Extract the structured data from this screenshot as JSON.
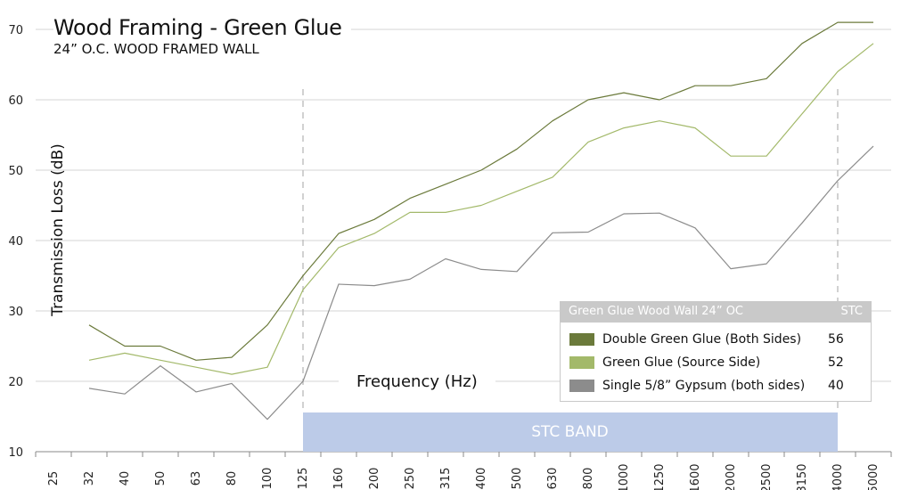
{
  "chart_data": {
    "type": "line",
    "title": "Wood Framing - Green Glue",
    "subtitle": "24” O.C. WOOD FRAMED WALL",
    "xlabel": "Frequency (Hz)",
    "ylabel": "Transmission Loss (dB)",
    "categories": [
      "25",
      "32",
      "40",
      "50",
      "63",
      "80",
      "100",
      "125",
      "160",
      "200",
      "250",
      "315",
      "400",
      "500",
      "630",
      "800",
      "1000",
      "1250",
      "1600",
      "2000",
      "2500",
      "3150",
      "4000",
      "5000"
    ],
    "yticks": [
      10,
      20,
      30,
      40,
      50,
      60,
      70
    ],
    "ylim": [
      10,
      72
    ],
    "grid": true,
    "series": [
      {
        "name": "Double Green Glue (Both Sides)",
        "stc": "56",
        "color": "#6b7a3b",
        "values": [
          null,
          28,
          25,
          25,
          23,
          23.4,
          28,
          35,
          41,
          43,
          46,
          48,
          50,
          53,
          57,
          60,
          61,
          60,
          62,
          62,
          63,
          68,
          71,
          71
        ]
      },
      {
        "name": "Green Glue (Source Side)",
        "stc": "52",
        "color": "#a3b96a",
        "values": [
          null,
          23,
          24,
          23,
          22,
          21,
          22,
          33,
          39,
          41,
          44,
          44,
          45,
          47,
          49,
          54,
          56,
          57,
          56,
          52,
          52,
          58,
          64,
          68
        ]
      },
      {
        "name": "Single 5/8” Gypsum (both sides)",
        "stc": "40",
        "color": "#8c8c8c",
        "values": [
          null,
          19,
          18.2,
          22.2,
          18.5,
          19.7,
          14.6,
          20,
          33.8,
          33.6,
          34.5,
          37.4,
          35.9,
          35.6,
          41.1,
          41.2,
          43.8,
          43.9,
          41.8,
          36,
          36.7,
          42.5,
          48.5,
          53.4
        ]
      }
    ],
    "stc_band": {
      "label": "STC BAND",
      "from": "125",
      "to": "4000",
      "color": "#bccbe8"
    },
    "legend": {
      "header": "Green Glue Wood Wall 24” OC",
      "stc_header": "STC",
      "placement": "bottom-right"
    }
  }
}
